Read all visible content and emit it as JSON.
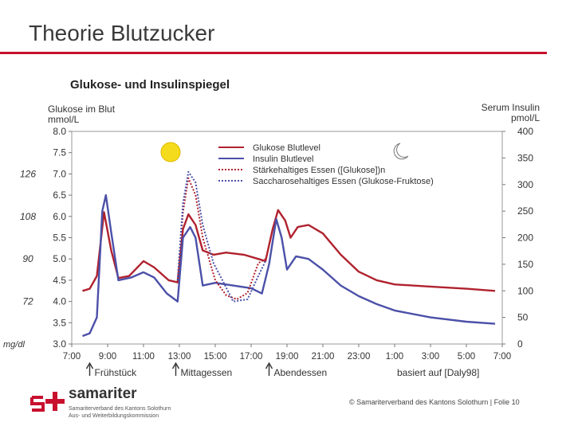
{
  "slide": {
    "title": "Theorie Blutzucker",
    "subtitle": "Glukose- und Insulinspiegel",
    "footer": "© Samariterverband des Kantons Solothurn | Folie 10"
  },
  "logo": {
    "word": "samariter",
    "line1": "Samariterverband des Kantons Solothurn",
    "line2": "Aus- und Weiterbildungskommission"
  },
  "colors": {
    "red": "#b0222e",
    "blue": "#4b50a8",
    "rule": "#c8102e",
    "sun": "#f4dc1c"
  },
  "chart_data": {
    "type": "line",
    "title": "",
    "y_left_label_1": "Glukose im Blut",
    "y_left_label_2": "mmol/L",
    "y_right_label_1": "Serum Insulin",
    "y_right_label_2": "pmol/L",
    "mgdl_unit": "mg/dl",
    "source_note": "basiert auf [Daly98]",
    "x_ticks": [
      "7:00",
      "9:00",
      "11:00",
      "13:00",
      "15:00",
      "17:00",
      "19:00",
      "21:00",
      "23:00",
      "1:00",
      "3:00",
      "5:00",
      "7:00"
    ],
    "y_left_ticks": [
      "3.0",
      "3.5",
      "4.0",
      "4.5",
      "5.0",
      "5.5",
      "6.0",
      "6.5",
      "7.0",
      "7.5",
      "8.0"
    ],
    "y_right_ticks": [
      "0",
      "50",
      "100",
      "150",
      "200",
      "250",
      "300",
      "350",
      "400"
    ],
    "mgdl_ticks": [
      {
        "label": "72",
        "at_mmol": 4.0
      },
      {
        "label": "90",
        "at_mmol": 5.0
      },
      {
        "label": "108",
        "at_mmol": 6.0
      },
      {
        "label": "126",
        "at_mmol": 7.0
      }
    ],
    "y_left_range": [
      3.0,
      8.0
    ],
    "y_right_range": [
      0,
      400
    ],
    "x_range_hours": [
      7,
      31
    ],
    "legend_placement": "top-center",
    "meals": [
      {
        "label": "Frühstück",
        "at_hour": 8.0
      },
      {
        "label": "Mittagessen",
        "at_hour": 12.8
      },
      {
        "label": "Abendessen",
        "at_hour": 18.0
      }
    ],
    "series": [
      {
        "name": "Glukose Blutlevel",
        "color": "#b0222e",
        "dash": "none",
        "axis": "left",
        "points": [
          [
            7.6,
            4.25
          ],
          [
            8.0,
            4.3
          ],
          [
            8.4,
            4.6
          ],
          [
            8.8,
            6.1
          ],
          [
            9.2,
            5.2
          ],
          [
            9.6,
            4.55
          ],
          [
            10.2,
            4.6
          ],
          [
            11.0,
            4.95
          ],
          [
            11.6,
            4.8
          ],
          [
            12.4,
            4.5
          ],
          [
            12.9,
            4.45
          ],
          [
            13.2,
            5.7
          ],
          [
            13.5,
            6.05
          ],
          [
            13.9,
            5.8
          ],
          [
            14.3,
            5.2
          ],
          [
            14.9,
            5.1
          ],
          [
            15.6,
            5.15
          ],
          [
            16.6,
            5.1
          ],
          [
            17.4,
            5.0
          ],
          [
            17.8,
            4.95
          ],
          [
            18.2,
            5.7
          ],
          [
            18.5,
            6.15
          ],
          [
            18.9,
            5.9
          ],
          [
            19.2,
            5.5
          ],
          [
            19.6,
            5.75
          ],
          [
            20.2,
            5.8
          ],
          [
            21.0,
            5.6
          ],
          [
            22.0,
            5.1
          ],
          [
            23.0,
            4.7
          ],
          [
            24.0,
            4.5
          ],
          [
            25.0,
            4.4
          ],
          [
            27.0,
            4.35
          ],
          [
            29.0,
            4.3
          ],
          [
            30.6,
            4.25
          ]
        ]
      },
      {
        "name": "Insulin Blutlevel",
        "color": "#4b50a8",
        "dash": "none",
        "axis": "right",
        "points": [
          [
            7.6,
            15
          ],
          [
            8.0,
            20
          ],
          [
            8.4,
            50
          ],
          [
            8.7,
            250
          ],
          [
            8.9,
            280
          ],
          [
            9.2,
            210
          ],
          [
            9.6,
            120
          ],
          [
            10.3,
            125
          ],
          [
            11.0,
            135
          ],
          [
            11.6,
            125
          ],
          [
            12.3,
            95
          ],
          [
            12.9,
            80
          ],
          [
            13.2,
            200
          ],
          [
            13.6,
            220
          ],
          [
            13.9,
            200
          ],
          [
            14.3,
            110
          ],
          [
            15.0,
            115
          ],
          [
            16.0,
            110
          ],
          [
            17.0,
            105
          ],
          [
            17.6,
            95
          ],
          [
            18.0,
            150
          ],
          [
            18.4,
            235
          ],
          [
            18.7,
            200
          ],
          [
            19.0,
            140
          ],
          [
            19.5,
            165
          ],
          [
            20.2,
            160
          ],
          [
            21.0,
            140
          ],
          [
            22.0,
            110
          ],
          [
            23.0,
            90
          ],
          [
            24.0,
            75
          ],
          [
            25.0,
            63
          ],
          [
            27.0,
            50
          ],
          [
            29.0,
            42
          ],
          [
            30.6,
            38
          ]
        ]
      },
      {
        "name": "Stärkehaltiges Essen ([Glukose])n",
        "color": "#b0222e",
        "dash": "dotted",
        "axis": "left",
        "points": [
          [
            12.9,
            4.5
          ],
          [
            13.2,
            6.1
          ],
          [
            13.5,
            6.9
          ],
          [
            13.9,
            6.5
          ],
          [
            14.3,
            5.5
          ],
          [
            15.0,
            4.5
          ],
          [
            15.6,
            4.15
          ],
          [
            16.2,
            4.05
          ],
          [
            16.8,
            4.2
          ],
          [
            17.4,
            4.9
          ],
          [
            17.8,
            5.0
          ]
        ]
      },
      {
        "name": "Saccharosehaltiges Essen (Glukose-Fruktose)",
        "color": "#4b50a8",
        "dash": "dotted",
        "axis": "left",
        "points": [
          [
            12.9,
            4.5
          ],
          [
            13.2,
            6.3
          ],
          [
            13.5,
            7.05
          ],
          [
            13.9,
            6.8
          ],
          [
            14.3,
            5.8
          ],
          [
            14.9,
            4.9
          ],
          [
            15.4,
            4.5
          ],
          [
            16.0,
            4.0
          ],
          [
            16.8,
            4.05
          ],
          [
            17.4,
            4.6
          ],
          [
            17.8,
            4.95
          ]
        ]
      }
    ]
  }
}
